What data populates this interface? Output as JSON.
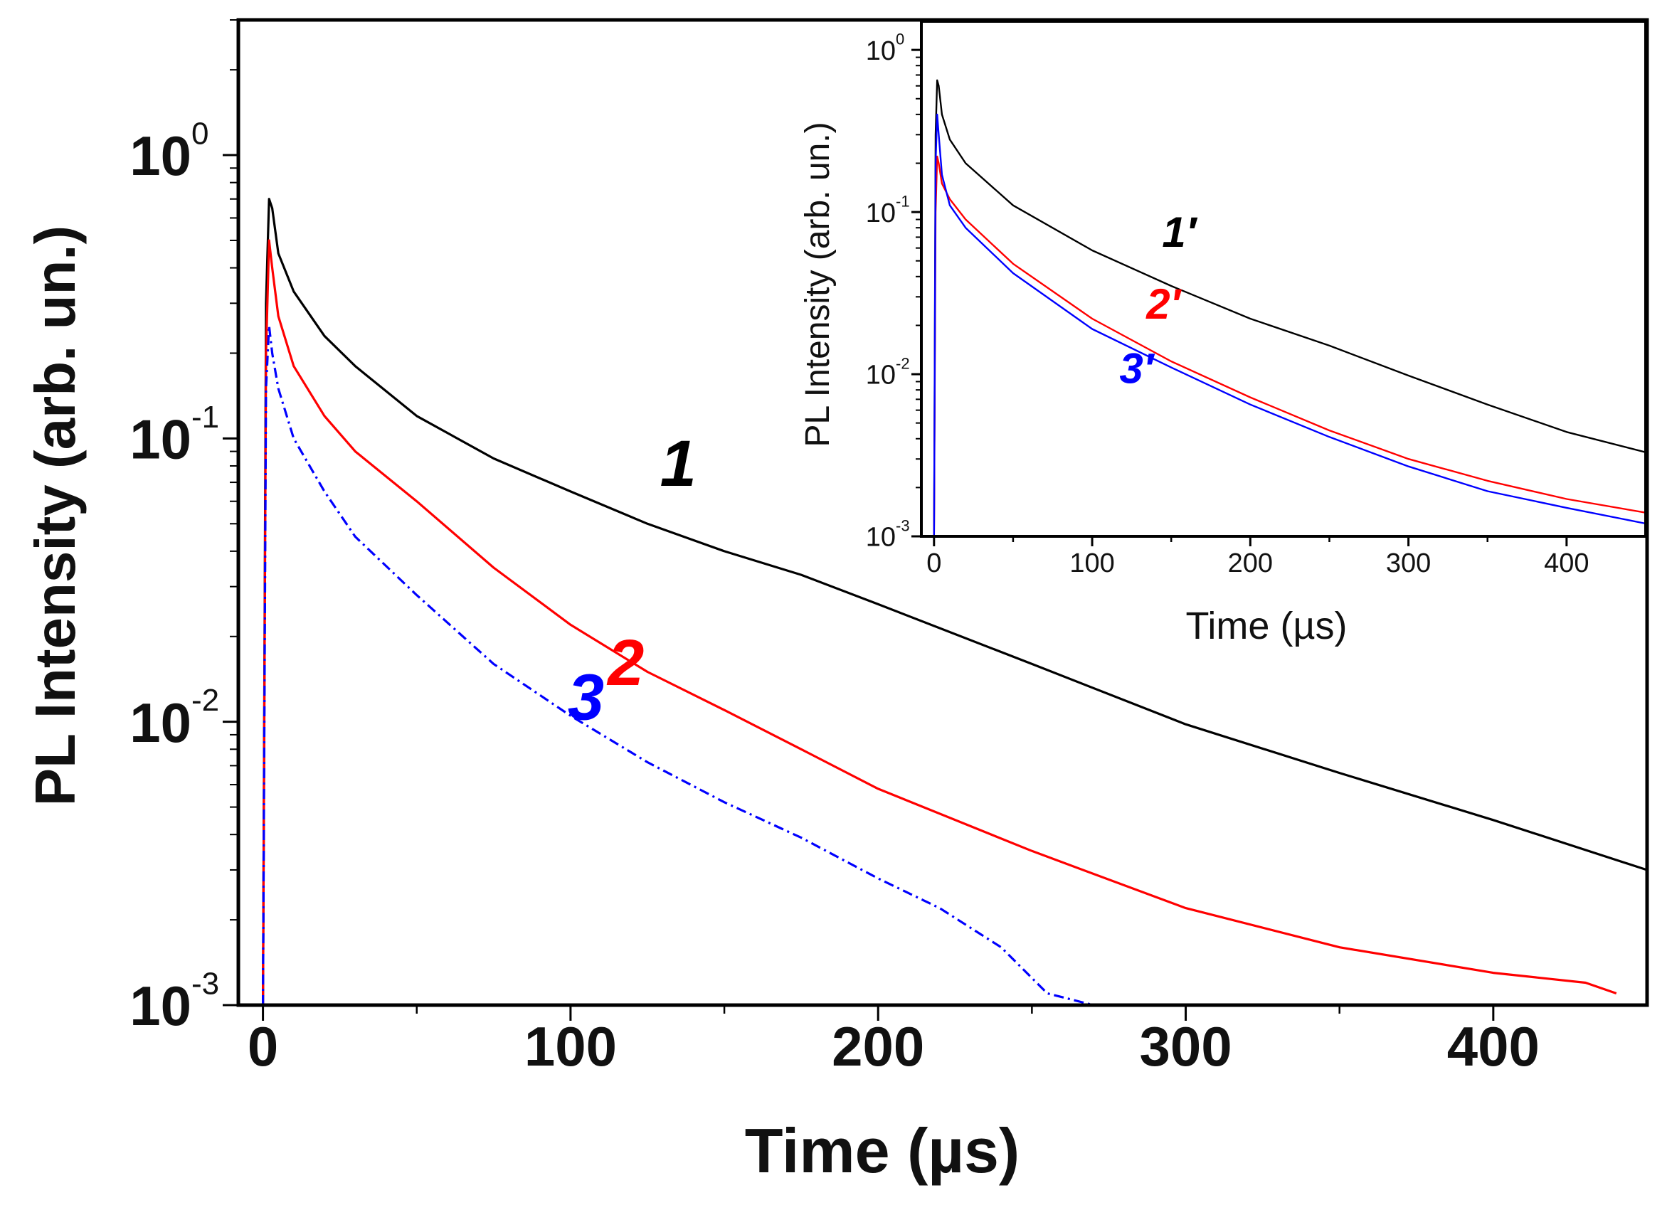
{
  "chart_data": [
    {
      "name": "main",
      "type": "line",
      "xlabel": "Time (µs)",
      "ylabel": "PL Intensity (arb. un.)",
      "yscale": "log",
      "xlim": [
        -8,
        450
      ],
      "ylim": [
        0.001,
        3
      ],
      "xticks": [
        0,
        100,
        200,
        300,
        400
      ],
      "xtick_labels": [
        "0",
        "100",
        "200",
        "300",
        "400"
      ],
      "yticks": [
        0.001,
        0.01,
        0.1,
        1
      ],
      "ytick_labels": [
        {
          "base": "10",
          "exp": "-3"
        },
        {
          "base": "10",
          "exp": "-2"
        },
        {
          "base": "10",
          "exp": "-1"
        },
        {
          "base": "10",
          "exp": "0"
        }
      ],
      "series": [
        {
          "name": "1",
          "label": "1",
          "color": "#000000",
          "style": "solid",
          "x": [
            0,
            1,
            2,
            3,
            5,
            10,
            20,
            30,
            50,
            75,
            100,
            125,
            150,
            175,
            200,
            250,
            300,
            350,
            400,
            450
          ],
          "y": [
            0.001,
            0.3,
            0.7,
            0.65,
            0.45,
            0.33,
            0.23,
            0.18,
            0.12,
            0.085,
            0.065,
            0.05,
            0.04,
            0.033,
            0.026,
            0.016,
            0.0098,
            0.0066,
            0.0045,
            0.003
          ],
          "label_at": [
            135,
            0.068
          ]
        },
        {
          "name": "2",
          "label": "2",
          "color": "#ff0000",
          "style": "solid",
          "x": [
            0,
            1,
            2,
            3,
            5,
            10,
            20,
            30,
            50,
            75,
            100,
            125,
            150,
            175,
            200,
            250,
            300,
            350,
            400,
            430,
            440
          ],
          "y": [
            0.001,
            0.2,
            0.5,
            0.4,
            0.27,
            0.18,
            0.12,
            0.09,
            0.06,
            0.035,
            0.022,
            0.015,
            0.011,
            0.008,
            0.0058,
            0.0035,
            0.0022,
            0.0016,
            0.0013,
            0.0012,
            0.0011
          ],
          "label_at": [
            118,
            0.0135
          ]
        },
        {
          "name": "3",
          "label": "3",
          "color": "#0000ff",
          "style": "dashed",
          "x": [
            0,
            1,
            2,
            3,
            5,
            10,
            20,
            30,
            50,
            75,
            100,
            125,
            150,
            175,
            200,
            220,
            240,
            255,
            270
          ],
          "y": [
            0.001,
            0.15,
            0.25,
            0.2,
            0.15,
            0.1,
            0.065,
            0.045,
            0.028,
            0.016,
            0.0105,
            0.0072,
            0.0052,
            0.0039,
            0.0028,
            0.0022,
            0.0016,
            0.0011,
            0.001
          ],
          "label_at": [
            105,
            0.0102
          ]
        }
      ]
    },
    {
      "name": "inset",
      "type": "line",
      "xlabel": "Time (µs)",
      "ylabel": "PL Intensity (arb. un.)",
      "yscale": "log",
      "xlim": [
        -8,
        450
      ],
      "ylim": [
        0.001,
        1.5
      ],
      "xticks": [
        0,
        100,
        200,
        300,
        400
      ],
      "xtick_labels": [
        "0",
        "100",
        "200",
        "300",
        "400"
      ],
      "yticks": [
        0.001,
        0.01,
        0.1,
        1
      ],
      "ytick_labels": [
        {
          "base": "10",
          "exp": "-3"
        },
        {
          "base": "10",
          "exp": "-2"
        },
        {
          "base": "10",
          "exp": "-1"
        },
        {
          "base": "10",
          "exp": "0"
        }
      ],
      "series": [
        {
          "name": "1'",
          "label": "1′",
          "color": "#000000",
          "style": "solid",
          "x": [
            0,
            1,
            2,
            3,
            5,
            10,
            20,
            50,
            100,
            150,
            200,
            250,
            300,
            350,
            400,
            450
          ],
          "y": [
            0.001,
            0.3,
            0.65,
            0.6,
            0.4,
            0.28,
            0.2,
            0.11,
            0.058,
            0.035,
            0.022,
            0.015,
            0.0098,
            0.0065,
            0.0044,
            0.0033
          ],
          "label_at": [
            155,
            0.061
          ]
        },
        {
          "name": "2'",
          "label": "2′",
          "color": "#ff0000",
          "style": "solid",
          "x": [
            0,
            1,
            2,
            3,
            5,
            10,
            20,
            50,
            100,
            150,
            200,
            250,
            300,
            350,
            400,
            450
          ],
          "y": [
            0.001,
            0.1,
            0.22,
            0.2,
            0.15,
            0.12,
            0.09,
            0.048,
            0.022,
            0.012,
            0.0072,
            0.0045,
            0.003,
            0.0022,
            0.0017,
            0.0014
          ],
          "label_at": [
            145,
            0.022
          ]
        },
        {
          "name": "3'",
          "label": "3′",
          "color": "#0000ff",
          "style": "solid",
          "x": [
            0,
            1,
            2,
            3,
            5,
            10,
            20,
            50,
            100,
            150,
            200,
            250,
            300,
            350,
            400,
            450
          ],
          "y": [
            0.001,
            0.2,
            0.4,
            0.3,
            0.17,
            0.11,
            0.08,
            0.042,
            0.019,
            0.011,
            0.0065,
            0.0041,
            0.0027,
            0.0019,
            0.0015,
            0.0012
          ],
          "label_at": [
            128,
            0.0088
          ]
        }
      ]
    }
  ]
}
